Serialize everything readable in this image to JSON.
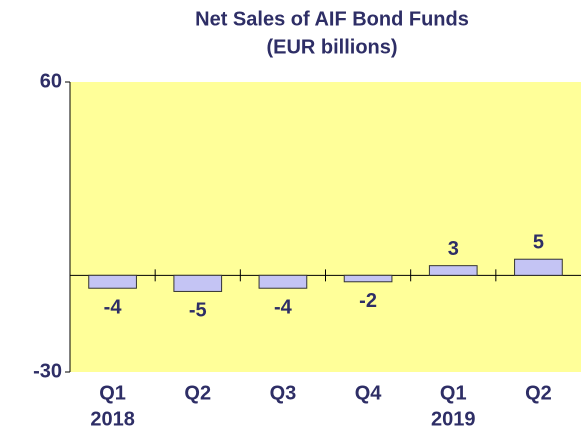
{
  "chart_data": {
    "type": "bar",
    "title": "Net Sales of AIF Bond Funds",
    "subtitle": "(EUR billions)",
    "categories": [
      "Q1",
      "Q2",
      "Q3",
      "Q4",
      "Q1",
      "Q2"
    ],
    "category_years": [
      "2018",
      null,
      null,
      null,
      "2019",
      null
    ],
    "values": [
      -4,
      -5,
      -4,
      -2,
      3,
      5
    ],
    "color": "#c4c4f4",
    "background": "#ffff99",
    "ylim": [
      -30,
      60
    ],
    "yticks": [
      -30,
      60
    ],
    "grid": false
  }
}
